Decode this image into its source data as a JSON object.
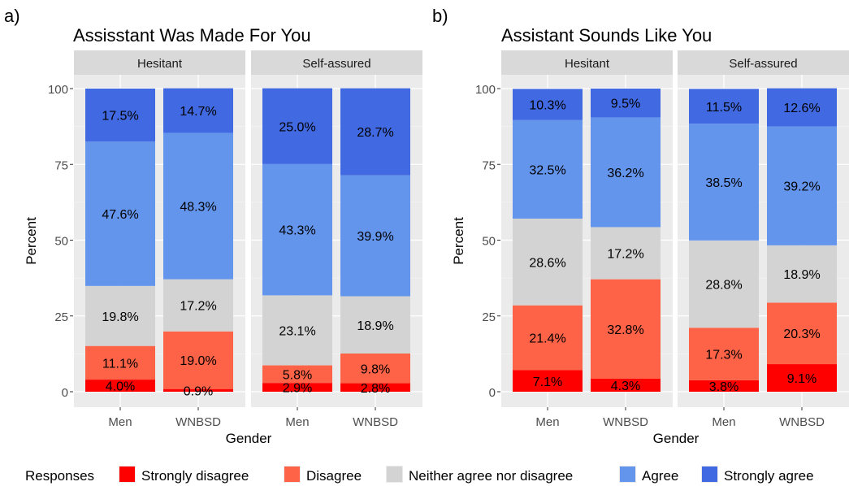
{
  "chart_data": [
    {
      "type": "bar",
      "panel_tag": "a)",
      "title": "Assisstant Was Made For You",
      "xlabel": "Gender",
      "ylabel": "Percent",
      "ylim": [
        0,
        100
      ],
      "yticks": [
        "0",
        "25",
        "50",
        "75",
        "100"
      ],
      "stacked": true,
      "grid": true,
      "facets": [
        {
          "name": "Hesitant",
          "categories": [
            "Men",
            "WNBSD"
          ],
          "series": [
            {
              "name": "Strongly disagree",
              "values": [
                4.0,
                0.9
              ],
              "labels": [
                "4.0%",
                "0.9%"
              ]
            },
            {
              "name": "Disagree",
              "values": [
                11.1,
                19.0
              ],
              "labels": [
                "11.1%",
                "19.0%"
              ]
            },
            {
              "name": "Neither agree nor disagree",
              "values": [
                19.8,
                17.2
              ],
              "labels": [
                "19.8%",
                "17.2%"
              ]
            },
            {
              "name": "Agree",
              "values": [
                47.6,
                48.3
              ],
              "labels": [
                "47.6%",
                "48.3%"
              ]
            },
            {
              "name": "Strongly agree",
              "values": [
                17.5,
                14.7
              ],
              "labels": [
                "17.5%",
                "14.7%"
              ]
            }
          ]
        },
        {
          "name": "Self-assured",
          "categories": [
            "Men",
            "WNBSD"
          ],
          "series": [
            {
              "name": "Strongly disagree",
              "values": [
                2.9,
                2.8
              ],
              "labels": [
                "2.9%",
                "2.8%"
              ]
            },
            {
              "name": "Disagree",
              "values": [
                5.8,
                9.8
              ],
              "labels": [
                "5.8%",
                "9.8%"
              ]
            },
            {
              "name": "Neither agree nor disagree",
              "values": [
                23.1,
                18.9
              ],
              "labels": [
                "23.1%",
                "18.9%"
              ]
            },
            {
              "name": "Agree",
              "values": [
                43.3,
                39.9
              ],
              "labels": [
                "43.3%",
                "39.9%"
              ]
            },
            {
              "name": "Strongly agree",
              "values": [
                25.0,
                28.7
              ],
              "labels": [
                "25.0%",
                "28.7%"
              ]
            }
          ]
        }
      ]
    },
    {
      "type": "bar",
      "panel_tag": "b)",
      "title": "Assistant Sounds Like You",
      "xlabel": "Gender",
      "ylabel": "Percent",
      "ylim": [
        0,
        100
      ],
      "yticks": [
        "0",
        "25",
        "50",
        "75",
        "100"
      ],
      "stacked": true,
      "grid": true,
      "facets": [
        {
          "name": "Hesitant",
          "categories": [
            "Men",
            "WNBSD"
          ],
          "series": [
            {
              "name": "Strongly disagree",
              "values": [
                7.1,
                4.3
              ],
              "labels": [
                "7.1%",
                "4.3%"
              ]
            },
            {
              "name": "Disagree",
              "values": [
                21.4,
                32.8
              ],
              "labels": [
                "21.4%",
                "32.8%"
              ]
            },
            {
              "name": "Neither agree nor disagree",
              "values": [
                28.6,
                17.2
              ],
              "labels": [
                "28.6%",
                "17.2%"
              ]
            },
            {
              "name": "Agree",
              "values": [
                32.5,
                36.2
              ],
              "labels": [
                "32.5%",
                "36.2%"
              ]
            },
            {
              "name": "Strongly agree",
              "values": [
                10.3,
                9.5
              ],
              "labels": [
                "10.3%",
                "9.5%"
              ]
            }
          ]
        },
        {
          "name": "Self-assured",
          "categories": [
            "Men",
            "WNBSD"
          ],
          "series": [
            {
              "name": "Strongly disagree",
              "values": [
                3.8,
                9.1
              ],
              "labels": [
                "3.8%",
                "9.1%"
              ]
            },
            {
              "name": "Disagree",
              "values": [
                17.3,
                20.3
              ],
              "labels": [
                "17.3%",
                "20.3%"
              ]
            },
            {
              "name": "Neither agree nor disagree",
              "values": [
                28.8,
                18.9
              ],
              "labels": [
                "28.8%",
                "18.9%"
              ]
            },
            {
              "name": "Agree",
              "values": [
                38.5,
                39.2
              ],
              "labels": [
                "38.5%",
                "39.2%"
              ]
            },
            {
              "name": "Strongly agree",
              "values": [
                11.5,
                12.6
              ],
              "labels": [
                "11.5%",
                "12.6%"
              ]
            }
          ]
        }
      ]
    }
  ],
  "legend": {
    "title": "Responses",
    "placement": "bottom",
    "items": [
      {
        "name": "Strongly disagree",
        "color": "#ff0000"
      },
      {
        "name": "Disagree",
        "color": "#ff6347"
      },
      {
        "name": "Neither agree nor disagree",
        "color": "#d3d3d3"
      },
      {
        "name": "Agree",
        "color": "#6495ed"
      },
      {
        "name": "Strongly agree",
        "color": "#4169e1"
      }
    ]
  },
  "colors": {
    "panel_background": "#ebebeb",
    "strip_background": "#d9d9d9",
    "grid": "#ffffff",
    "text": "#000000",
    "tick_text": "#4d4d4d"
  }
}
